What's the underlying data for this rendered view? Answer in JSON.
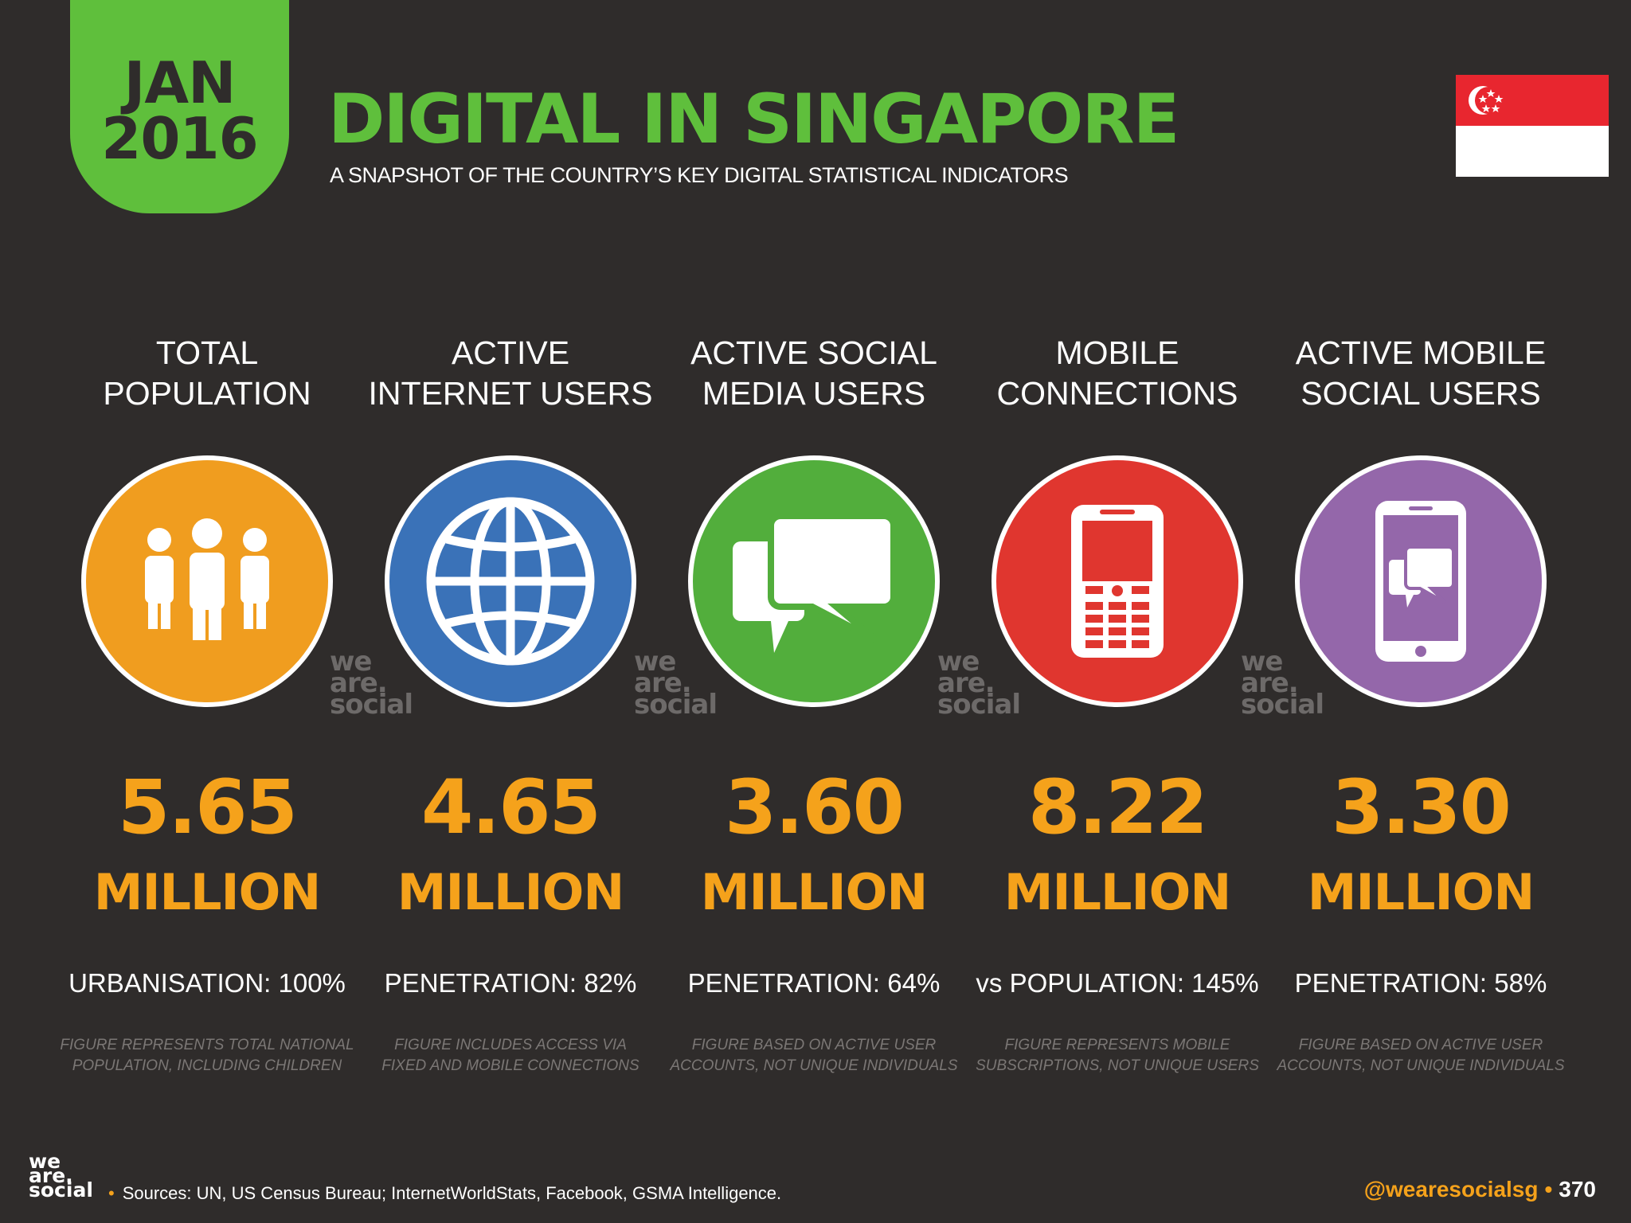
{
  "header": {
    "date_line1": "JAN",
    "date_line2": "2016",
    "title": "DIGITAL IN SINGAPORE",
    "subtitle": "A SNAPSHOT OF THE COUNTRY’S KEY DIGITAL STATISTICAL INDICATORS"
  },
  "colors": {
    "green": "#5fbf3c",
    "orange_value": "#f5a21b",
    "background": "#2f2c2b"
  },
  "columns": [
    {
      "label_line1": "TOTAL",
      "label_line2": "POPULATION",
      "icon": "people-icon",
      "circle_color": "#f09d1f",
      "value": "5.65",
      "unit": "MILLION",
      "stat": "URBANISATION: 100%",
      "note_line1": "FIGURE REPRESENTS TOTAL NATIONAL",
      "note_line2": "POPULATION, INCLUDING CHILDREN"
    },
    {
      "label_line1": "ACTIVE",
      "label_line2": "INTERNET USERS",
      "icon": "globe-icon",
      "circle_color": "#3a72b8",
      "value": "4.65",
      "unit": "MILLION",
      "stat": "PENETRATION: 82%",
      "note_line1": "FIGURE INCLUDES ACCESS VIA",
      "note_line2": "FIXED AND MOBILE CONNECTIONS"
    },
    {
      "label_line1": "ACTIVE SOCIAL",
      "label_line2": "MEDIA USERS",
      "icon": "chat-bubbles-icon",
      "circle_color": "#52ae3c",
      "value": "3.60",
      "unit": "MILLION",
      "stat": "PENETRATION: 64%",
      "note_line1": "FIGURE BASED ON ACTIVE USER",
      "note_line2": "ACCOUNTS, NOT UNIQUE INDIVIDUALS"
    },
    {
      "label_line1": "MOBILE",
      "label_line2": "CONNECTIONS",
      "icon": "mobile-phone-icon",
      "circle_color": "#e0362f",
      "value": "8.22",
      "unit": "MILLION",
      "stat": "vs POPULATION: 145%",
      "note_line1": "FIGURE REPRESENTS MOBILE",
      "note_line2": "SUBSCRIPTIONS, NOT UNIQUE USERS"
    },
    {
      "label_line1": "ACTIVE MOBILE",
      "label_line2": "SOCIAL USERS",
      "icon": "smartphone-chat-icon",
      "circle_color": "#9467aa",
      "value": "3.30",
      "unit": "MILLION",
      "stat": "PENETRATION: 58%",
      "note_line1": "FIGURE BASED ON ACTIVE USER",
      "note_line2": "ACCOUNTS, NOT UNIQUE INDIVIDUALS"
    }
  ],
  "watermark": {
    "line1": "we",
    "line2": "are.",
    "line3": "social"
  },
  "footer": {
    "logo_line1": "we",
    "logo_line2": "are.",
    "logo_line3": "social",
    "sources": "Sources: UN, US Census Bureau; InternetWorldStats, Facebook, GSMA Intelligence.",
    "handle": "@wearesocialsg",
    "page": "370"
  }
}
